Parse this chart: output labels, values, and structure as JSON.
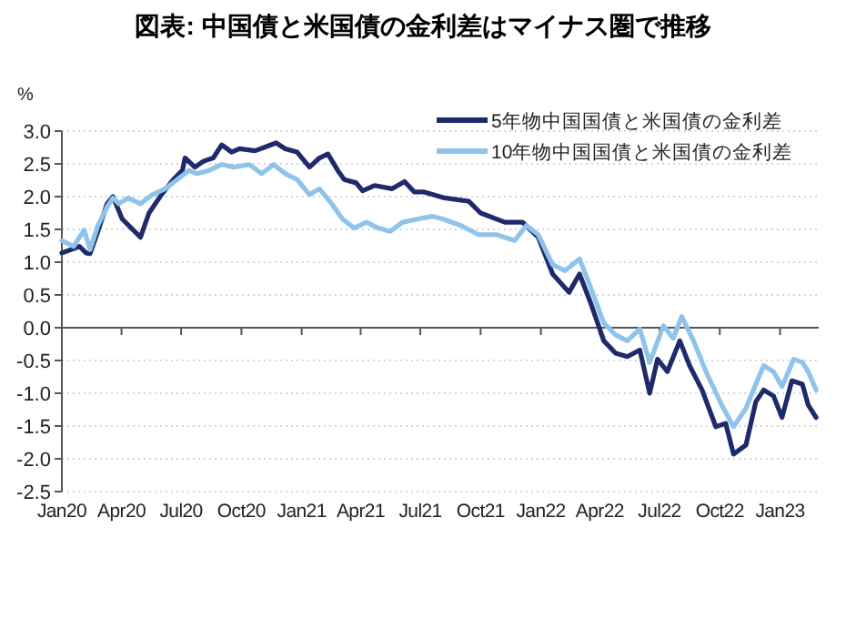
{
  "chart_data": {
    "type": "line",
    "title": "図表: 中国債と米国債の金利差はマイナス圏で推移",
    "ylabel": "%",
    "xlim": [
      "2020-01-01",
      "2023-03-01"
    ],
    "xticks": [
      {
        "value": "2020-01",
        "label": "Jan20"
      },
      {
        "value": "2020-04",
        "label": "Apr20"
      },
      {
        "value": "2020-07",
        "label": "Jul20"
      },
      {
        "value": "2020-10",
        "label": "Oct20"
      },
      {
        "value": "2021-01",
        "label": "Jan21"
      },
      {
        "value": "2021-04",
        "label": "Apr21"
      },
      {
        "value": "2021-07",
        "label": "Jul21"
      },
      {
        "value": "2021-10",
        "label": "Oct21"
      },
      {
        "value": "2022-01",
        "label": "Jan22"
      },
      {
        "value": "2022-04",
        "label": "Apr22"
      },
      {
        "value": "2022-07",
        "label": "Jul22"
      },
      {
        "value": "2022-10",
        "label": "Oct22"
      },
      {
        "value": "2023-01",
        "label": "Jan23"
      }
    ],
    "ylim": [
      -2.5,
      3.0
    ],
    "yticks": [
      {
        "value": 3,
        "label": "3.0"
      },
      {
        "value": 2.5,
        "label": "2.5"
      },
      {
        "value": 2,
        "label": "2.0"
      },
      {
        "value": 1.5,
        "label": "1.5"
      },
      {
        "value": 1,
        "label": "1.0"
      },
      {
        "value": 0.5,
        "label": "0.5"
      },
      {
        "value": 0,
        "label": "0.0"
      },
      {
        "value": -0.5,
        "label": "-0.5"
      },
      {
        "value": -1,
        "label": "-1.0"
      },
      {
        "value": -1.5,
        "label": "-1.5"
      },
      {
        "value": -2,
        "label": "-2.0"
      },
      {
        "value": -2.5,
        "label": "-2.5"
      }
    ],
    "grid": "y",
    "legend": "top right",
    "line_style": "solid",
    "series": [
      {
        "name": "5年物中国国債と米国債の金利差",
        "color": "#1f2a6b",
        "x": [
          "2020-01-01",
          "2020-01-28",
          "2020-02-07",
          "2020-02-13",
          "2020-02-25",
          "2020-03-10",
          "2020-03-19",
          "2020-04-02",
          "2020-04-16",
          "2020-04-30",
          "2020-05-13",
          "2020-06-01",
          "2020-06-19",
          "2020-07-03",
          "2020-07-07",
          "2020-07-22",
          "2020-08-04",
          "2020-08-19",
          "2020-09-01",
          "2020-09-16",
          "2020-09-28",
          "2020-10-22",
          "2020-11-10",
          "2020-11-23",
          "2020-12-07",
          "2020-12-25",
          "2021-01-13",
          "2021-01-28",
          "2021-02-10",
          "2021-02-25",
          "2021-03-07",
          "2021-03-25",
          "2021-04-04",
          "2021-04-22",
          "2021-05-19",
          "2021-06-07",
          "2021-06-22",
          "2021-07-07",
          "2021-08-07",
          "2021-09-13",
          "2021-10-01",
          "2021-11-07",
          "2021-12-04",
          "2021-12-28",
          "2022-01-19",
          "2022-02-13",
          "2022-03-01",
          "2022-03-19",
          "2022-04-07",
          "2022-04-25",
          "2022-05-13",
          "2022-06-01",
          "2022-06-16",
          "2022-06-28",
          "2022-07-13",
          "2022-08-01",
          "2022-08-16",
          "2022-09-04",
          "2022-09-25",
          "2022-10-10",
          "2022-10-22",
          "2022-11-10",
          "2022-11-25",
          "2022-12-07",
          "2022-12-22",
          "2023-01-04",
          "2023-01-19",
          "2023-02-04",
          "2023-02-13",
          "2023-02-25"
        ],
        "values": [
          1.14,
          1.24,
          1.14,
          1.13,
          1.47,
          1.89,
          2.0,
          1.66,
          1.52,
          1.38,
          1.75,
          2.03,
          2.26,
          2.4,
          2.59,
          2.45,
          2.54,
          2.59,
          2.79,
          2.68,
          2.73,
          2.7,
          2.77,
          2.82,
          2.73,
          2.68,
          2.45,
          2.59,
          2.65,
          2.4,
          2.26,
          2.21,
          2.09,
          2.17,
          2.12,
          2.23,
          2.07,
          2.07,
          1.98,
          1.93,
          1.75,
          1.61,
          1.61,
          1.38,
          0.82,
          0.54,
          0.82,
          0.35,
          -0.2,
          -0.39,
          -0.44,
          -0.34,
          -1.0,
          -0.48,
          -0.67,
          -0.2,
          -0.58,
          -0.95,
          -1.51,
          -1.46,
          -1.93,
          -1.79,
          -1.13,
          -0.95,
          -1.04,
          -1.37,
          -0.81,
          -0.86,
          -1.18,
          -1.37
        ]
      },
      {
        "name": "10年物中国国債と米国債の金利差",
        "color": "#8fc3ea",
        "x": [
          "2020-01-01",
          "2020-01-19",
          "2020-02-04",
          "2020-02-13",
          "2020-02-25",
          "2020-03-10",
          "2020-03-19",
          "2020-03-28",
          "2020-04-11",
          "2020-04-30",
          "2020-05-18",
          "2020-06-07",
          "2020-06-25",
          "2020-07-13",
          "2020-07-25",
          "2020-08-13",
          "2020-09-01",
          "2020-09-19",
          "2020-10-13",
          "2020-11-01",
          "2020-11-19",
          "2020-12-07",
          "2020-12-25",
          "2021-01-13",
          "2021-01-28",
          "2021-02-16",
          "2021-03-04",
          "2021-03-22",
          "2021-04-10",
          "2021-04-28",
          "2021-05-16",
          "2021-06-04",
          "2021-06-28",
          "2021-07-19",
          "2021-08-04",
          "2021-09-01",
          "2021-09-28",
          "2021-10-25",
          "2021-11-22",
          "2021-12-10",
          "2021-12-28",
          "2022-01-19",
          "2022-02-07",
          "2022-03-01",
          "2022-03-19",
          "2022-04-07",
          "2022-04-25",
          "2022-05-13",
          "2022-06-01",
          "2022-06-16",
          "2022-07-07",
          "2022-07-22",
          "2022-08-04",
          "2022-08-22",
          "2022-09-10",
          "2022-10-04",
          "2022-10-22",
          "2022-11-10",
          "2022-11-25",
          "2022-12-07",
          "2022-12-22",
          "2023-01-04",
          "2023-01-22",
          "2023-02-04",
          "2023-02-13",
          "2023-02-25"
        ],
        "values": [
          1.33,
          1.24,
          1.49,
          1.19,
          1.56,
          1.84,
          1.98,
          1.89,
          1.98,
          1.89,
          2.03,
          2.12,
          2.26,
          2.4,
          2.35,
          2.4,
          2.49,
          2.45,
          2.49,
          2.35,
          2.49,
          2.35,
          2.26,
          2.03,
          2.12,
          1.89,
          1.66,
          1.52,
          1.61,
          1.52,
          1.47,
          1.61,
          1.66,
          1.7,
          1.66,
          1.56,
          1.42,
          1.42,
          1.33,
          1.56,
          1.42,
          0.96,
          0.87,
          1.05,
          0.59,
          0.07,
          -0.11,
          -0.2,
          -0.02,
          -0.53,
          0.03,
          -0.16,
          0.17,
          -0.2,
          -0.67,
          -1.18,
          -1.51,
          -1.23,
          -0.86,
          -0.58,
          -0.67,
          -0.9,
          -0.48,
          -0.53,
          -0.67,
          -0.95
        ]
      }
    ]
  }
}
